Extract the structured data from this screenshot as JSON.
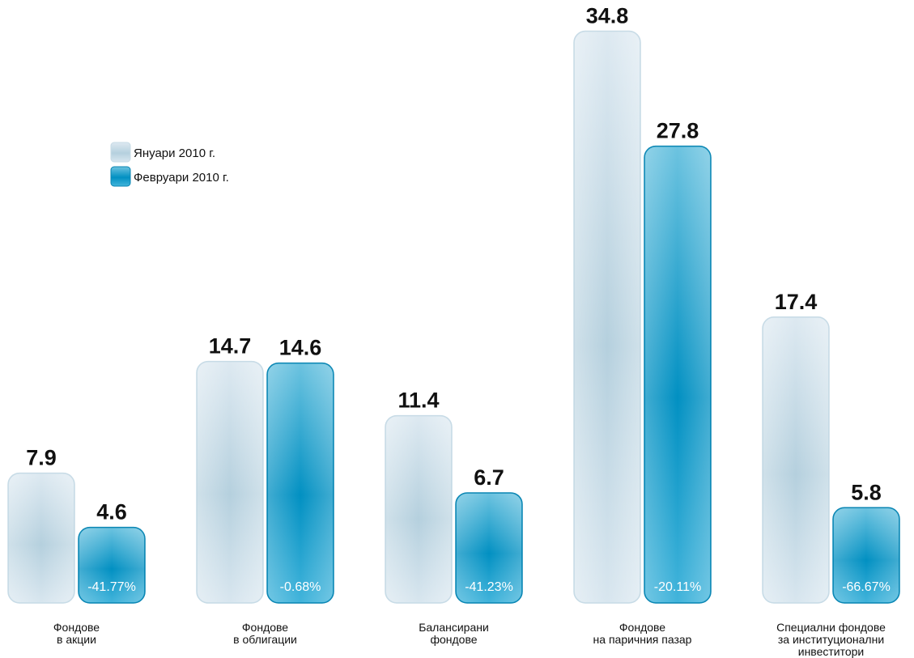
{
  "chart_data": {
    "type": "bar",
    "title": "",
    "xlabel": "",
    "ylabel": "",
    "categories": [
      [
        "Фондове",
        "в акции"
      ],
      [
        "Фондове",
        "в облигации"
      ],
      [
        "Балансирани",
        "фондове"
      ],
      [
        "Фондове",
        "на паричния пазар"
      ],
      [
        "Специални фондове",
        "за институционални",
        "инвеститори"
      ]
    ],
    "series": [
      {
        "name": "Януари 2010 г.",
        "values": [
          7.9,
          14.7,
          11.4,
          34.8,
          17.4
        ],
        "color": "#c9dde8"
      },
      {
        "name": "Февруари 2010 г.",
        "values": [
          4.6,
          14.6,
          6.7,
          27.8,
          5.8
        ],
        "color": "#0a98c4"
      }
    ],
    "value_labels": [
      [
        "7.9",
        "14.7",
        "11.4",
        "34.8",
        "17.4"
      ],
      [
        "4.6",
        "14.6",
        "6.7",
        "27.8",
        "5.8"
      ]
    ],
    "change_labels": [
      "-41.77%",
      "-0.68%",
      "-41.23%",
      "-20.11%",
      "-66.67%"
    ],
    "grid": false,
    "legend": "top-left",
    "ylim": [
      0,
      35
    ]
  }
}
